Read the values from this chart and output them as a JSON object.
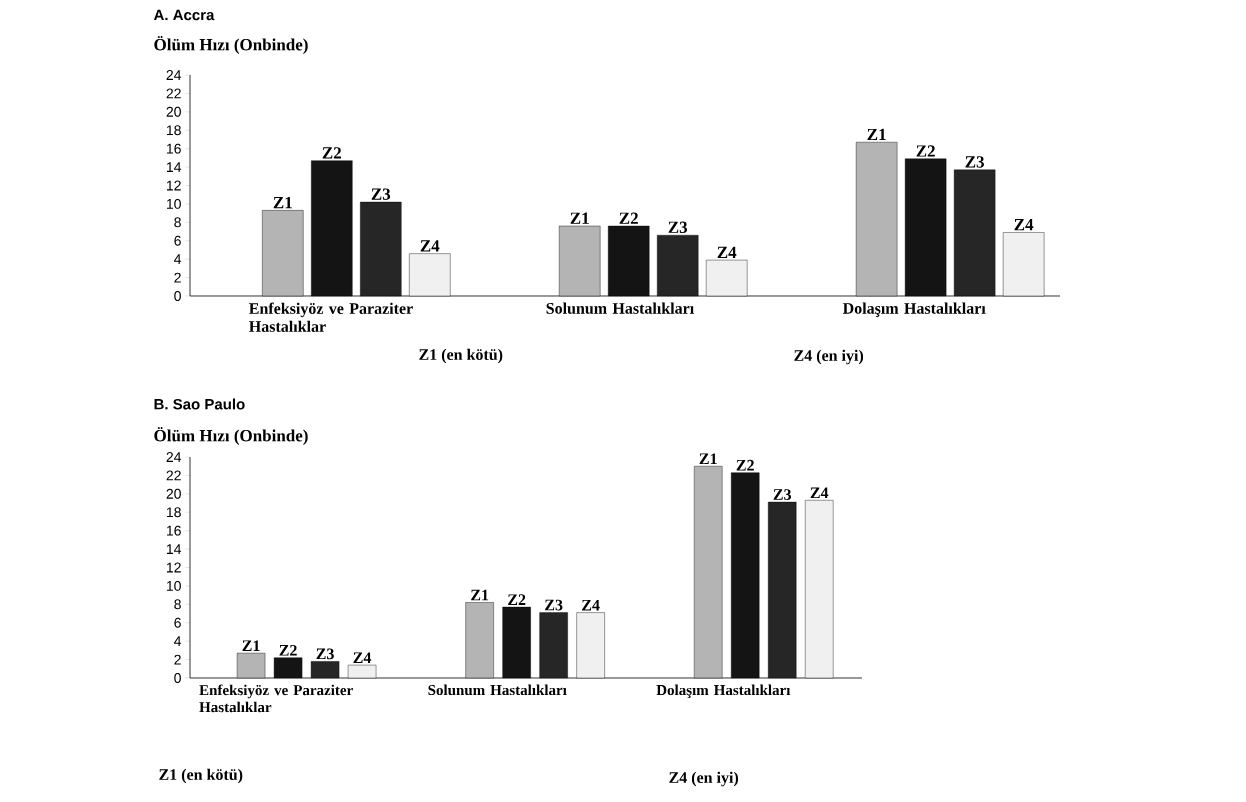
{
  "chart_data": [
    {
      "type": "bar",
      "title": "A. Accra",
      "ylabel": "Ölüm Hızı (Onbinde)",
      "categories": [
        "Enfeksiyöz ve Paraziter Hastalıklar",
        "Solunum Hastalıkları",
        "Dolaşım Hastalıkları"
      ],
      "series": [
        {
          "name": "Z1",
          "color": "#b4b4b4",
          "values": [
            9.3,
            7.6,
            16.7
          ]
        },
        {
          "name": "Z2",
          "color": "#141414",
          "values": [
            14.7,
            7.6,
            14.9
          ]
        },
        {
          "name": "Z3",
          "color": "#262626",
          "values": [
            10.2,
            6.6,
            13.7
          ]
        },
        {
          "name": "Z4",
          "color": "#f0f0f0",
          "values": [
            4.6,
            3.9,
            6.9
          ]
        }
      ],
      "ylim": [
        0,
        24
      ],
      "yticks": [
        0,
        2,
        4,
        6,
        8,
        10,
        12,
        14,
        16,
        18,
        20,
        22,
        24
      ],
      "grid": false,
      "legend": false,
      "annotations": [
        "Z1 (en kötü)",
        "Z4 (en iyi)"
      ]
    },
    {
      "type": "bar",
      "title": "B. Sao Paulo",
      "ylabel": "Ölüm Hızı (Onbinde)",
      "categories": [
        "Enfeksiyöz ve Paraziter Hastalıklar",
        "Solunum Hastalıkları",
        "Dolaşım Hastalıkları"
      ],
      "series": [
        {
          "name": "Z1",
          "color": "#b4b4b4",
          "values": [
            2.7,
            8.2,
            23
          ]
        },
        {
          "name": "Z2",
          "color": "#141414",
          "values": [
            2.2,
            7.7,
            22.3
          ]
        },
        {
          "name": "Z3",
          "color": "#262626",
          "values": [
            1.8,
            7.1,
            19.1
          ]
        },
        {
          "name": "Z4",
          "color": "#f0f0f0",
          "values": [
            1.4,
            7.1,
            19.3
          ]
        }
      ],
      "ylim": [
        0,
        24
      ],
      "yticks": [
        0,
        2,
        4,
        6,
        8,
        10,
        12,
        14,
        16,
        18,
        20,
        22,
        24
      ],
      "grid": false,
      "legend": false,
      "annotations": [
        "Z1 (en kötü)",
        "Z4 (en iyi)"
      ]
    }
  ]
}
